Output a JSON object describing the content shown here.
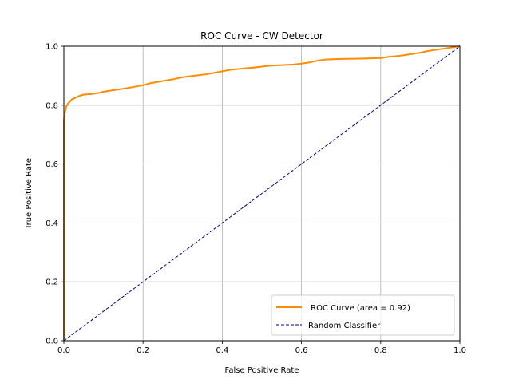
{
  "chart_data": {
    "type": "line",
    "title": "ROC Curve - CW Detector",
    "xlabel": "False Positive Rate",
    "ylabel": "True Positive Rate",
    "xlim": [
      0.0,
      1.0
    ],
    "ylim": [
      0.0,
      1.0
    ],
    "grid": true,
    "legend_position": "lower-right",
    "x_ticks": [
      "0.0",
      "0.2",
      "0.4",
      "0.6",
      "0.8",
      "1.0"
    ],
    "y_ticks": [
      "0.0",
      "0.2",
      "0.4",
      "0.6",
      "0.8",
      "1.0"
    ],
    "series": [
      {
        "name": " ROC Curve (area = 0.92)",
        "color": "#ff8c00",
        "style": "solid",
        "x": [
          0.0,
          0.0,
          0.002,
          0.004,
          0.006,
          0.01,
          0.015,
          0.02,
          0.03,
          0.04,
          0.05,
          0.07,
          0.09,
          0.1,
          0.12,
          0.14,
          0.16,
          0.18,
          0.2,
          0.22,
          0.25,
          0.28,
          0.3,
          0.33,
          0.36,
          0.38,
          0.4,
          0.42,
          0.45,
          0.48,
          0.5,
          0.52,
          0.55,
          0.58,
          0.6,
          0.62,
          0.64,
          0.66,
          0.7,
          0.75,
          0.8,
          0.82,
          0.85,
          0.88,
          0.9,
          0.92,
          0.95,
          0.98,
          1.0
        ],
        "y": [
          0.0,
          0.75,
          0.77,
          0.785,
          0.795,
          0.805,
          0.812,
          0.82,
          0.826,
          0.832,
          0.836,
          0.838,
          0.842,
          0.846,
          0.85,
          0.854,
          0.858,
          0.863,
          0.868,
          0.875,
          0.882,
          0.889,
          0.895,
          0.9,
          0.905,
          0.91,
          0.915,
          0.92,
          0.924,
          0.928,
          0.931,
          0.934,
          0.936,
          0.938,
          0.941,
          0.945,
          0.951,
          0.955,
          0.957,
          0.958,
          0.96,
          0.964,
          0.968,
          0.974,
          0.978,
          0.984,
          0.99,
          0.996,
          1.0
        ]
      },
      {
        "name": "Random Classifier",
        "color": "#000080",
        "style": "dashed",
        "x": [
          0.0,
          1.0
        ],
        "y": [
          0.0,
          1.0
        ]
      }
    ]
  }
}
